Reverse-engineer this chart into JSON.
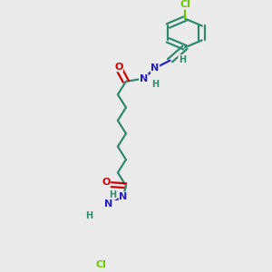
{
  "bg_color": "#ebebeb",
  "bond_color": "#2d8a6e",
  "N_color": "#2222bb",
  "O_color": "#cc0000",
  "Cl_color": "#66cc00",
  "line_width": 1.6,
  "dbo": 0.011,
  "font_size_atom": 8,
  "font_size_H": 7,
  "fig_size": [
    3.0,
    3.0
  ],
  "dpi": 100,
  "xlim": [
    0,
    1
  ],
  "ylim": [
    0,
    1
  ]
}
